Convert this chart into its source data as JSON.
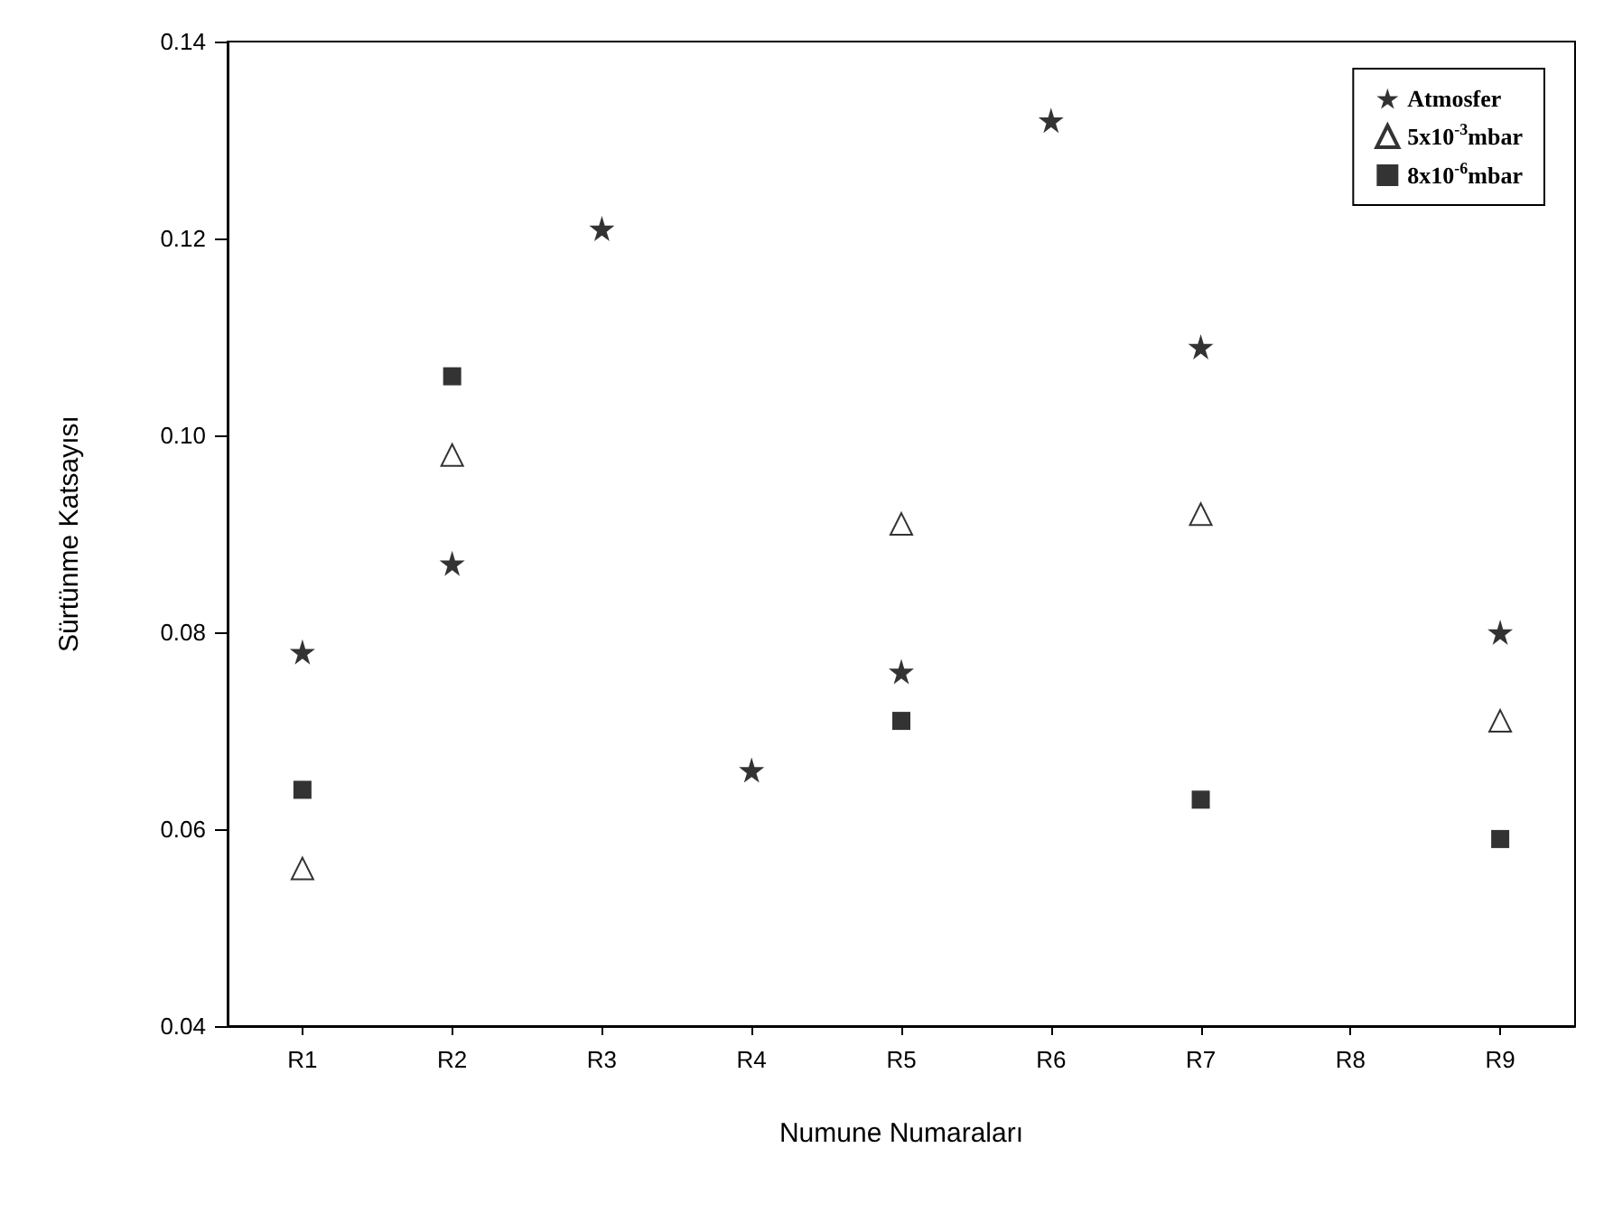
{
  "chart_data": {
    "type": "scatter",
    "xlabel": "Numune Numaraları",
    "ylabel": "Sürtünme Katsayısı",
    "categories": [
      "R1",
      "R2",
      "R3",
      "R4",
      "R5",
      "R6",
      "R7",
      "R8",
      "R9"
    ],
    "series": [
      {
        "name": "Atmosfer",
        "color": "#000000",
        "marker": "star",
        "values": [
          0.078,
          0.087,
          0.121,
          0.066,
          0.076,
          0.132,
          0.109,
          null,
          0.08
        ]
      },
      {
        "name": "5x10$^{-3}$mbar",
        "color": "#000000",
        "marker": "triangle",
        "values": [
          0.056,
          0.098,
          null,
          null,
          0.091,
          null,
          0.092,
          null,
          0.071
        ]
      },
      {
        "name": "8x10$^{-6}$mbar",
        "color": "#000000",
        "marker": "square",
        "values": [
          0.064,
          0.106,
          null,
          null,
          0.071,
          null,
          0.063,
          null,
          0.059
        ]
      }
    ],
    "ylim": [
      0.04,
      0.14
    ],
    "yticks": [
      {
        "value": 0.04,
        "label": "0.04"
      },
      {
        "value": 0.06,
        "label": "0.06"
      },
      {
        "value": 0.08,
        "label": "0.08"
      },
      {
        "value": 0.1,
        "label": "0.10"
      },
      {
        "value": 0.12,
        "label": "0.12"
      },
      {
        "value": 0.14,
        "label": "0.14"
      }
    ],
    "grid": false,
    "legend": "top right"
  }
}
